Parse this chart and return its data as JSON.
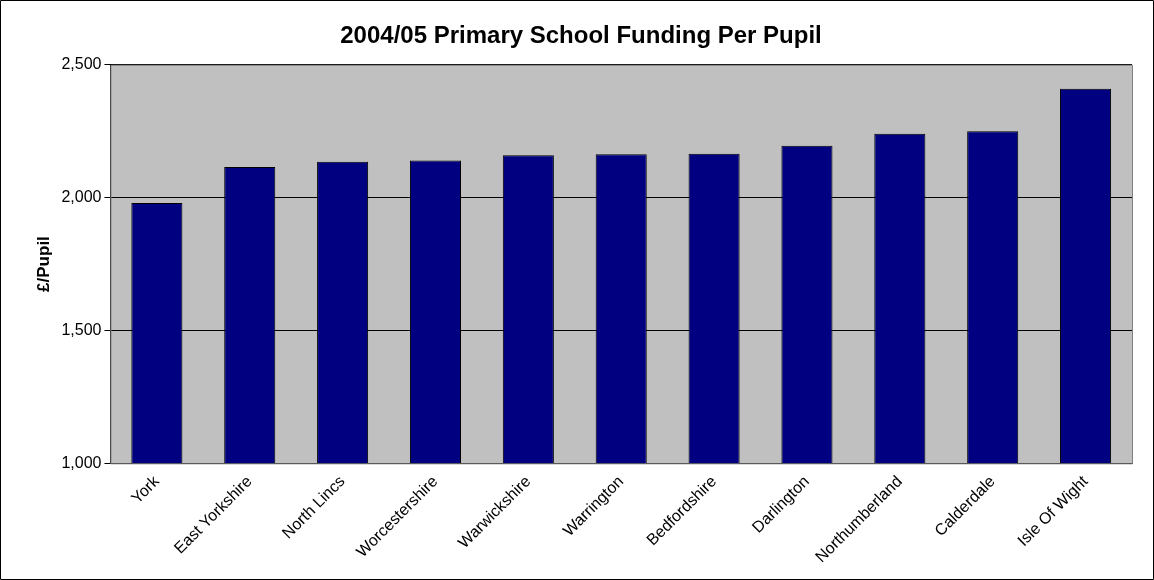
{
  "chart_data": {
    "type": "bar",
    "title": "2004/05 Primary School Funding Per Pupil",
    "ylabel": "£/Pupil",
    "categories": [
      "York",
      "East Yorkshire",
      "North Lincs",
      "Worcestershire",
      "Warwickshire",
      "Warrington",
      "Bedfordshire",
      "Darlington",
      "Northumberland",
      "Calderdale",
      "Isle Of Wight"
    ],
    "values": [
      1980,
      2115,
      2135,
      2140,
      2160,
      2163,
      2165,
      2195,
      2240,
      2250,
      2410
    ],
    "color": "#000080",
    "ylim": [
      1000,
      2500
    ],
    "yticks": [
      {
        "value": 1000,
        "label": "1,000"
      },
      {
        "value": 1500,
        "label": "1,500"
      },
      {
        "value": 2000,
        "label": "2,000"
      },
      {
        "value": 2500,
        "label": "2,500"
      }
    ],
    "grid": "y",
    "legend": false
  }
}
